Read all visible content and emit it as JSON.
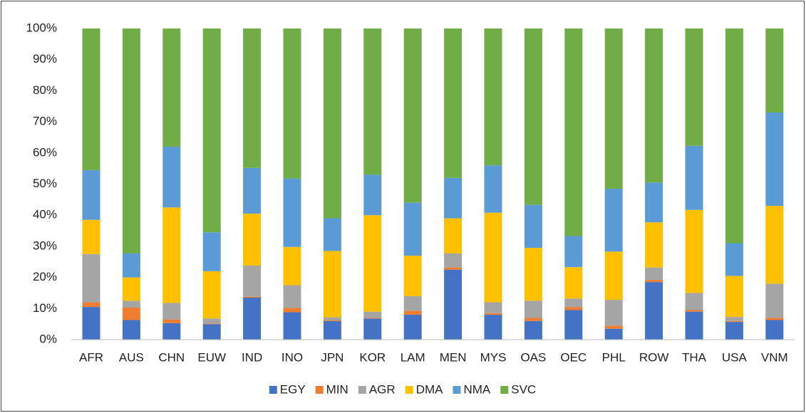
{
  "chart_data": {
    "type": "stacked_bar",
    "categories": [
      "AFR",
      "AUS",
      "CHN",
      "EUW",
      "IND",
      "INO",
      "JPN",
      "KOR",
      "LAM",
      "MEN",
      "MYS",
      "OAS",
      "OEC",
      "PHL",
      "ROW",
      "THA",
      "USA",
      "VNM"
    ],
    "series": [
      {
        "name": "EGY",
        "color": "#4472c4",
        "values": [
          10.5,
          6.3,
          5.3,
          5,
          13.5,
          8.8,
          6,
          6.8,
          8,
          22.5,
          8,
          6,
          9.5,
          3.5,
          18.5,
          9,
          5.7,
          6.3
        ]
      },
      {
        "name": "MIN",
        "color": "#ed7d31",
        "values": [
          1.5,
          4,
          1.2,
          0.2,
          0.3,
          1.4,
          0.3,
          0.2,
          1.3,
          0.7,
          0.5,
          1,
          1,
          1,
          0.7,
          0.5,
          0.3,
          0.7
        ]
      },
      {
        "name": "AGR",
        "color": "#a5a5a5",
        "values": [
          15.5,
          2.2,
          5.3,
          1.6,
          10,
          7.3,
          0.9,
          2,
          4.7,
          4.5,
          3.5,
          5.5,
          2.7,
          8.3,
          4,
          5.5,
          1.3,
          11
        ]
      },
      {
        "name": "DMA",
        "color": "#ffc000",
        "values": [
          11,
          7.5,
          30.7,
          15.2,
          16.7,
          12.3,
          21.3,
          31,
          13,
          11.3,
          28.8,
          17,
          10.1,
          15.5,
          14.5,
          26.7,
          13.2,
          25
        ]
      },
      {
        "name": "NMA",
        "color": "#5b9bd5",
        "values": [
          16,
          7.7,
          19.5,
          12.5,
          14.7,
          22,
          10.5,
          13,
          17,
          13,
          15.2,
          13.8,
          10,
          20.2,
          12.8,
          20.6,
          10.5,
          30
        ]
      },
      {
        "name": "SVC",
        "color": "#70ad47",
        "values": [
          45.5,
          72.3,
          38,
          65.5,
          44.8,
          48.2,
          61,
          47,
          56,
          48,
          44,
          56.7,
          66.7,
          51.5,
          49.5,
          37.7,
          69,
          27
        ]
      }
    ],
    "ylim": [
      0,
      100
    ],
    "yticks": [
      {
        "value": 0,
        "label": "0%"
      },
      {
        "value": 10,
        "label": "10%"
      },
      {
        "value": 20,
        "label": "20%"
      },
      {
        "value": 30,
        "label": "30%"
      },
      {
        "value": 40,
        "label": "40%"
      },
      {
        "value": 50,
        "label": "50%"
      },
      {
        "value": 60,
        "label": "60%"
      },
      {
        "value": 70,
        "label": "70%"
      },
      {
        "value": 80,
        "label": "80%"
      },
      {
        "value": 90,
        "label": "90%"
      },
      {
        "value": 100,
        "label": "100%"
      }
    ],
    "grid": false,
    "legend": "bottom"
  }
}
